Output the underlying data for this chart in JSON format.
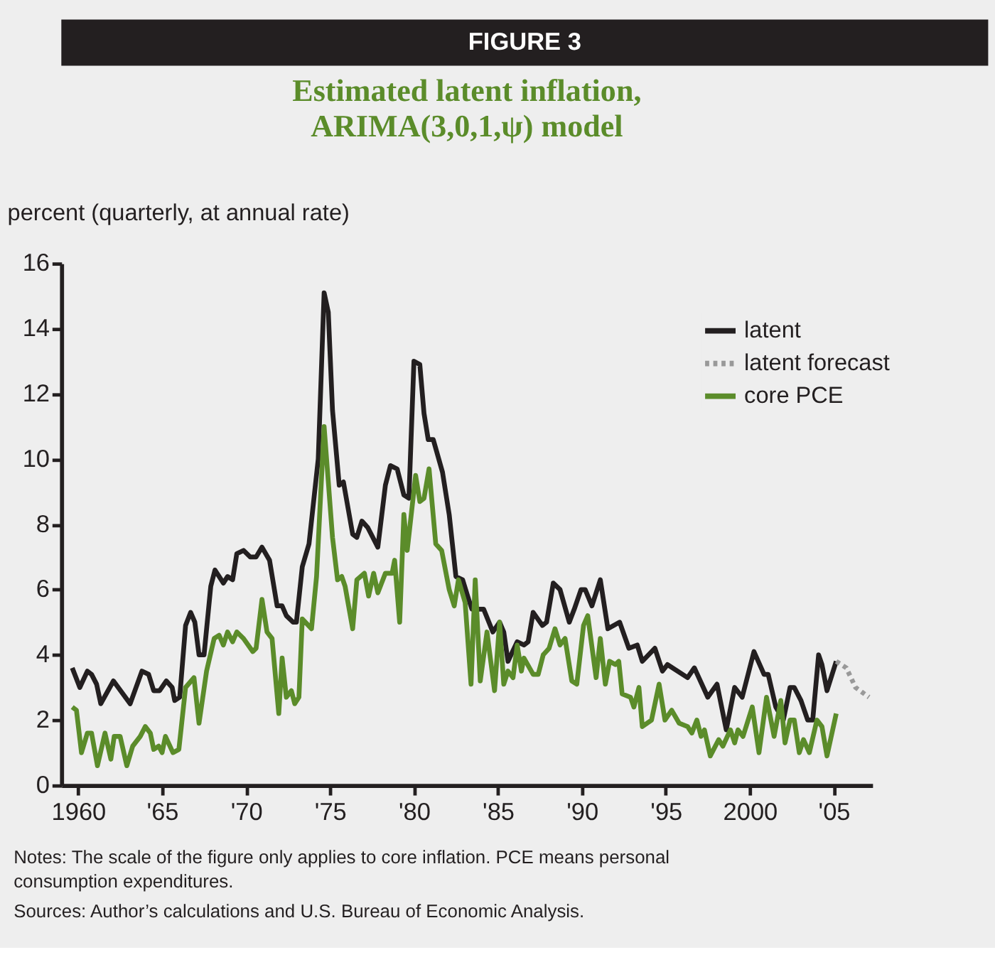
{
  "chart_data": {
    "type": "line",
    "title": [
      "Estimated latent inflation,",
      "ARIMA(3,0,1,ψ) model"
    ],
    "ylabel": "percent (quarterly, at annual rate)",
    "annotations": [
      "FIGURE 3",
      "Notes: The scale of the figure only applies to core inflation. PCE means personal consumption expenditures.",
      "Sources: Author’s calculations and U.S. Bureau of Economic Analysis."
    ],
    "xlim": [
      1959,
      2007.3
    ],
    "ylim": [
      0,
      16
    ],
    "xticks": [
      {
        "value": 1960,
        "label": "1960"
      },
      {
        "value": 1965,
        "label": "'65"
      },
      {
        "value": 1970,
        "label": "'70"
      },
      {
        "value": 1975,
        "label": "'75"
      },
      {
        "value": 1980,
        "label": "'80"
      },
      {
        "value": 1985,
        "label": "'85"
      },
      {
        "value": 1990,
        "label": "'90"
      },
      {
        "value": 1995,
        "label": "'95"
      },
      {
        "value": 2000,
        "label": "2000"
      },
      {
        "value": 2005,
        "label": "'05"
      }
    ],
    "yticks": [
      0,
      2,
      4,
      6,
      8,
      10,
      12,
      14,
      16
    ],
    "grid": false,
    "legend": "top right",
    "marker": "none",
    "series": [
      {
        "name": "latent",
        "color": "#231f20",
        "line_style": "solid",
        "x": [
          1959.65,
          1960.1,
          1960.55,
          1960.8,
          1961.1,
          1961.35,
          1962.1,
          1963.1,
          1963.8,
          1964.2,
          1964.5,
          1964.85,
          1965.25,
          1965.6,
          1965.75,
          1966.05,
          1966.4,
          1966.7,
          1966.95,
          1967.2,
          1967.5,
          1967.9,
          1968.15,
          1968.65,
          1968.9,
          1969.2,
          1969.45,
          1969.85,
          1970.25,
          1970.6,
          1970.95,
          1971.4,
          1971.85,
          1972.15,
          1972.4,
          1972.8,
          1973.0,
          1973.35,
          1973.75,
          1974.3,
          1974.65,
          1974.9,
          1975.15,
          1975.55,
          1975.8,
          1976.35,
          1976.6,
          1976.9,
          1977.25,
          1977.85,
          1978.3,
          1978.6,
          1979.0,
          1979.4,
          1979.7,
          1980.0,
          1980.35,
          1980.6,
          1980.85,
          1981.15,
          1981.7,
          1982.1,
          1982.5,
          1982.9,
          1983.2,
          1983.45,
          1984.15,
          1984.7,
          1985.1,
          1985.35,
          1985.6,
          1986.15,
          1986.55,
          1986.8,
          1987.1,
          1987.65,
          1987.9,
          1988.3,
          1988.7,
          1989.25,
          1989.55,
          1989.95,
          1990.2,
          1990.6,
          1991.1,
          1991.55,
          1992.25,
          1992.8,
          1993.3,
          1993.6,
          1994.35,
          1994.8,
          1995.1,
          1996.3,
          1996.7,
          1997.5,
          1998.05,
          1998.6,
          1999.1,
          1999.55,
          2000.25,
          2000.85,
          2001.1,
          2001.55,
          2002.0,
          2002.4,
          2002.65,
          2003.05,
          2003.45,
          2003.75,
          2004.1,
          2004.3,
          2004.6,
          2005.15
        ],
        "values": [
          3.6,
          3.0,
          3.5,
          3.4,
          3.1,
          2.5,
          3.2,
          2.5,
          3.5,
          3.4,
          2.9,
          2.9,
          3.2,
          3.0,
          2.6,
          2.7,
          4.9,
          5.3,
          5.0,
          4.0,
          4.0,
          6.1,
          6.6,
          6.2,
          6.4,
          6.3,
          7.1,
          7.2,
          7.0,
          7.0,
          7.3,
          6.9,
          5.5,
          5.5,
          5.2,
          5.0,
          5.0,
          6.7,
          7.4,
          10.0,
          15.1,
          14.5,
          11.5,
          9.2,
          9.3,
          7.7,
          7.6,
          8.1,
          7.9,
          7.3,
          9.2,
          9.8,
          9.7,
          8.9,
          8.8,
          13.0,
          12.9,
          11.4,
          10.6,
          10.6,
          9.6,
          8.3,
          6.4,
          6.3,
          5.8,
          5.4,
          5.4,
          4.7,
          5.0,
          4.7,
          3.8,
          4.4,
          4.3,
          4.4,
          5.3,
          4.9,
          5.0,
          6.2,
          6.0,
          5.0,
          5.4,
          6.0,
          6.0,
          5.5,
          6.3,
          4.8,
          5.0,
          4.2,
          4.3,
          3.8,
          4.2,
          3.5,
          3.7,
          3.3,
          3.6,
          2.7,
          3.1,
          1.7,
          3.0,
          2.7,
          4.1,
          3.4,
          3.4,
          2.4,
          2.0,
          3.0,
          3.0,
          2.6,
          2.0,
          2.0,
          4.0,
          3.7,
          2.9,
          3.8
        ]
      },
      {
        "name": "latent forecast",
        "color": "#999999",
        "line_style": "dotted",
        "x": [
          2005.15,
          2005.75,
          2006.3,
          2007.1
        ],
        "values": [
          3.8,
          3.6,
          3.0,
          2.7
        ]
      },
      {
        "name": "core PCE",
        "color": "#5b8c2a",
        "line_style": "solid",
        "x": [
          1959.65,
          1959.9,
          1960.2,
          1960.55,
          1960.8,
          1961.15,
          1961.6,
          1961.95,
          1962.15,
          1962.5,
          1962.9,
          1963.25,
          1963.7,
          1964.0,
          1964.3,
          1964.5,
          1964.8,
          1965.0,
          1965.2,
          1965.65,
          1966.0,
          1966.4,
          1966.9,
          1967.2,
          1967.65,
          1968.1,
          1968.4,
          1968.65,
          1968.9,
          1969.2,
          1969.45,
          1969.85,
          1970.4,
          1970.6,
          1970.95,
          1971.25,
          1971.55,
          1971.95,
          1972.15,
          1972.4,
          1972.7,
          1972.9,
          1973.15,
          1973.35,
          1973.9,
          1974.2,
          1974.65,
          1975.15,
          1975.45,
          1975.7,
          1975.9,
          1976.35,
          1976.6,
          1977.05,
          1977.3,
          1977.6,
          1977.85,
          1978.3,
          1978.7,
          1978.85,
          1979.15,
          1979.4,
          1979.6,
          1980.1,
          1980.35,
          1980.6,
          1980.9,
          1981.3,
          1981.65,
          1982.1,
          1982.4,
          1982.65,
          1983.05,
          1983.4,
          1983.65,
          1983.95,
          1984.35,
          1984.8,
          1985.1,
          1985.35,
          1985.6,
          1985.9,
          1986.15,
          1986.4,
          1986.55,
          1987.1,
          1987.4,
          1987.7,
          1988.05,
          1988.4,
          1988.7,
          1989.0,
          1989.4,
          1989.7,
          1990.1,
          1990.35,
          1990.85,
          1991.1,
          1991.4,
          1991.65,
          1992.0,
          1992.2,
          1992.4,
          1992.9,
          1993.1,
          1993.4,
          1993.6,
          1994.15,
          1994.6,
          1994.95,
          1995.35,
          1995.8,
          1996.3,
          1996.55,
          1996.85,
          1997.1,
          1997.3,
          1997.65,
          1998.15,
          1998.4,
          1998.85,
          1999.1,
          1999.3,
          1999.6,
          2000.15,
          2000.55,
          2001.0,
          2001.45,
          2001.85,
          2002.1,
          2002.4,
          2002.65,
          2002.95,
          2003.2,
          2003.55,
          2004.0,
          2004.3,
          2004.6,
          2005.15
        ],
        "values": [
          2.4,
          2.3,
          1.0,
          1.6,
          1.6,
          0.6,
          1.6,
          0.8,
          1.5,
          1.5,
          0.6,
          1.2,
          1.5,
          1.8,
          1.6,
          1.1,
          1.2,
          1.0,
          1.5,
          1.0,
          1.1,
          3.0,
          3.3,
          1.9,
          3.5,
          4.5,
          4.6,
          4.3,
          4.7,
          4.4,
          4.7,
          4.5,
          4.1,
          4.2,
          5.7,
          4.7,
          4.5,
          2.2,
          3.9,
          2.7,
          2.9,
          2.5,
          2.7,
          5.1,
          4.8,
          6.4,
          11.0,
          7.6,
          6.3,
          6.4,
          6.1,
          4.8,
          6.3,
          6.5,
          5.8,
          6.5,
          5.9,
          6.5,
          6.5,
          6.9,
          5.0,
          8.3,
          7.2,
          9.5,
          8.7,
          8.8,
          9.7,
          7.4,
          7.2,
          6.0,
          5.5,
          6.3,
          5.6,
          3.1,
          6.3,
          3.2,
          4.7,
          2.9,
          5.0,
          3.1,
          3.5,
          3.3,
          4.3,
          3.5,
          3.9,
          3.4,
          3.4,
          4.0,
          4.2,
          4.8,
          4.3,
          4.5,
          3.2,
          3.1,
          4.9,
          5.2,
          3.3,
          4.5,
          3.1,
          3.8,
          3.7,
          3.8,
          2.8,
          2.7,
          2.4,
          3.0,
          1.8,
          2.0,
          3.1,
          2.0,
          2.3,
          1.9,
          1.8,
          1.6,
          2.0,
          1.5,
          1.7,
          0.9,
          1.4,
          1.2,
          1.7,
          1.3,
          1.7,
          1.5,
          2.4,
          1.0,
          2.7,
          1.5,
          2.6,
          1.3,
          2.0,
          2.0,
          1.0,
          1.4,
          1.0,
          2.0,
          1.8,
          0.9,
          2.2
        ]
      }
    ]
  }
}
